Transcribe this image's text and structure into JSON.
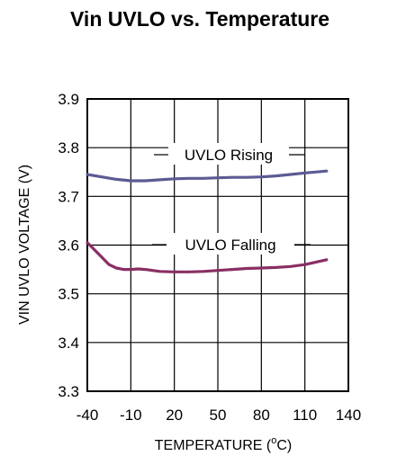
{
  "chart_data": {
    "type": "line",
    "title": "Vin UVLO vs. Temperature",
    "xlabel_main": "TEMPERATURE (",
    "xlabel_degree": "o",
    "xlabel_tail": "C)",
    "ylabel": "VIN UVLO VOLTAGE (V)",
    "xlim": [
      -40,
      140
    ],
    "ylim": [
      3.3,
      3.9
    ],
    "xticks": [
      -40,
      -10,
      20,
      50,
      80,
      110,
      140
    ],
    "xtick_labels": [
      "-40",
      "-10",
      "20",
      "50",
      "80",
      "110",
      "140"
    ],
    "yticks": [
      3.3,
      3.4,
      3.5,
      3.6,
      3.7,
      3.8,
      3.9
    ],
    "ytick_labels": [
      "3.3",
      "3.4",
      "3.5",
      "3.6",
      "3.7",
      "3.8",
      "3.9"
    ],
    "grid": true,
    "legend": "none",
    "series": [
      {
        "name": "UVLO Rising",
        "color": "#5b5b94",
        "x": [
          -40,
          -30,
          -20,
          -10,
          0,
          10,
          20,
          30,
          40,
          50,
          60,
          70,
          80,
          90,
          100,
          110,
          125
        ],
        "y": [
          3.745,
          3.74,
          3.735,
          3.732,
          3.732,
          3.734,
          3.736,
          3.737,
          3.737,
          3.738,
          3.739,
          3.739,
          3.74,
          3.742,
          3.745,
          3.748,
          3.752
        ]
      },
      {
        "name": "UVLO Falling",
        "color": "#8a2e64",
        "x": [
          -40,
          -35,
          -30,
          -25,
          -20,
          -15,
          -10,
          -5,
          0,
          10,
          20,
          30,
          40,
          50,
          60,
          70,
          80,
          90,
          100,
          110,
          125
        ],
        "y": [
          3.605,
          3.59,
          3.575,
          3.56,
          3.553,
          3.55,
          3.55,
          3.551,
          3.55,
          3.546,
          3.545,
          3.545,
          3.546,
          3.548,
          3.55,
          3.552,
          3.553,
          3.554,
          3.556,
          3.56,
          3.57
        ]
      }
    ]
  }
}
